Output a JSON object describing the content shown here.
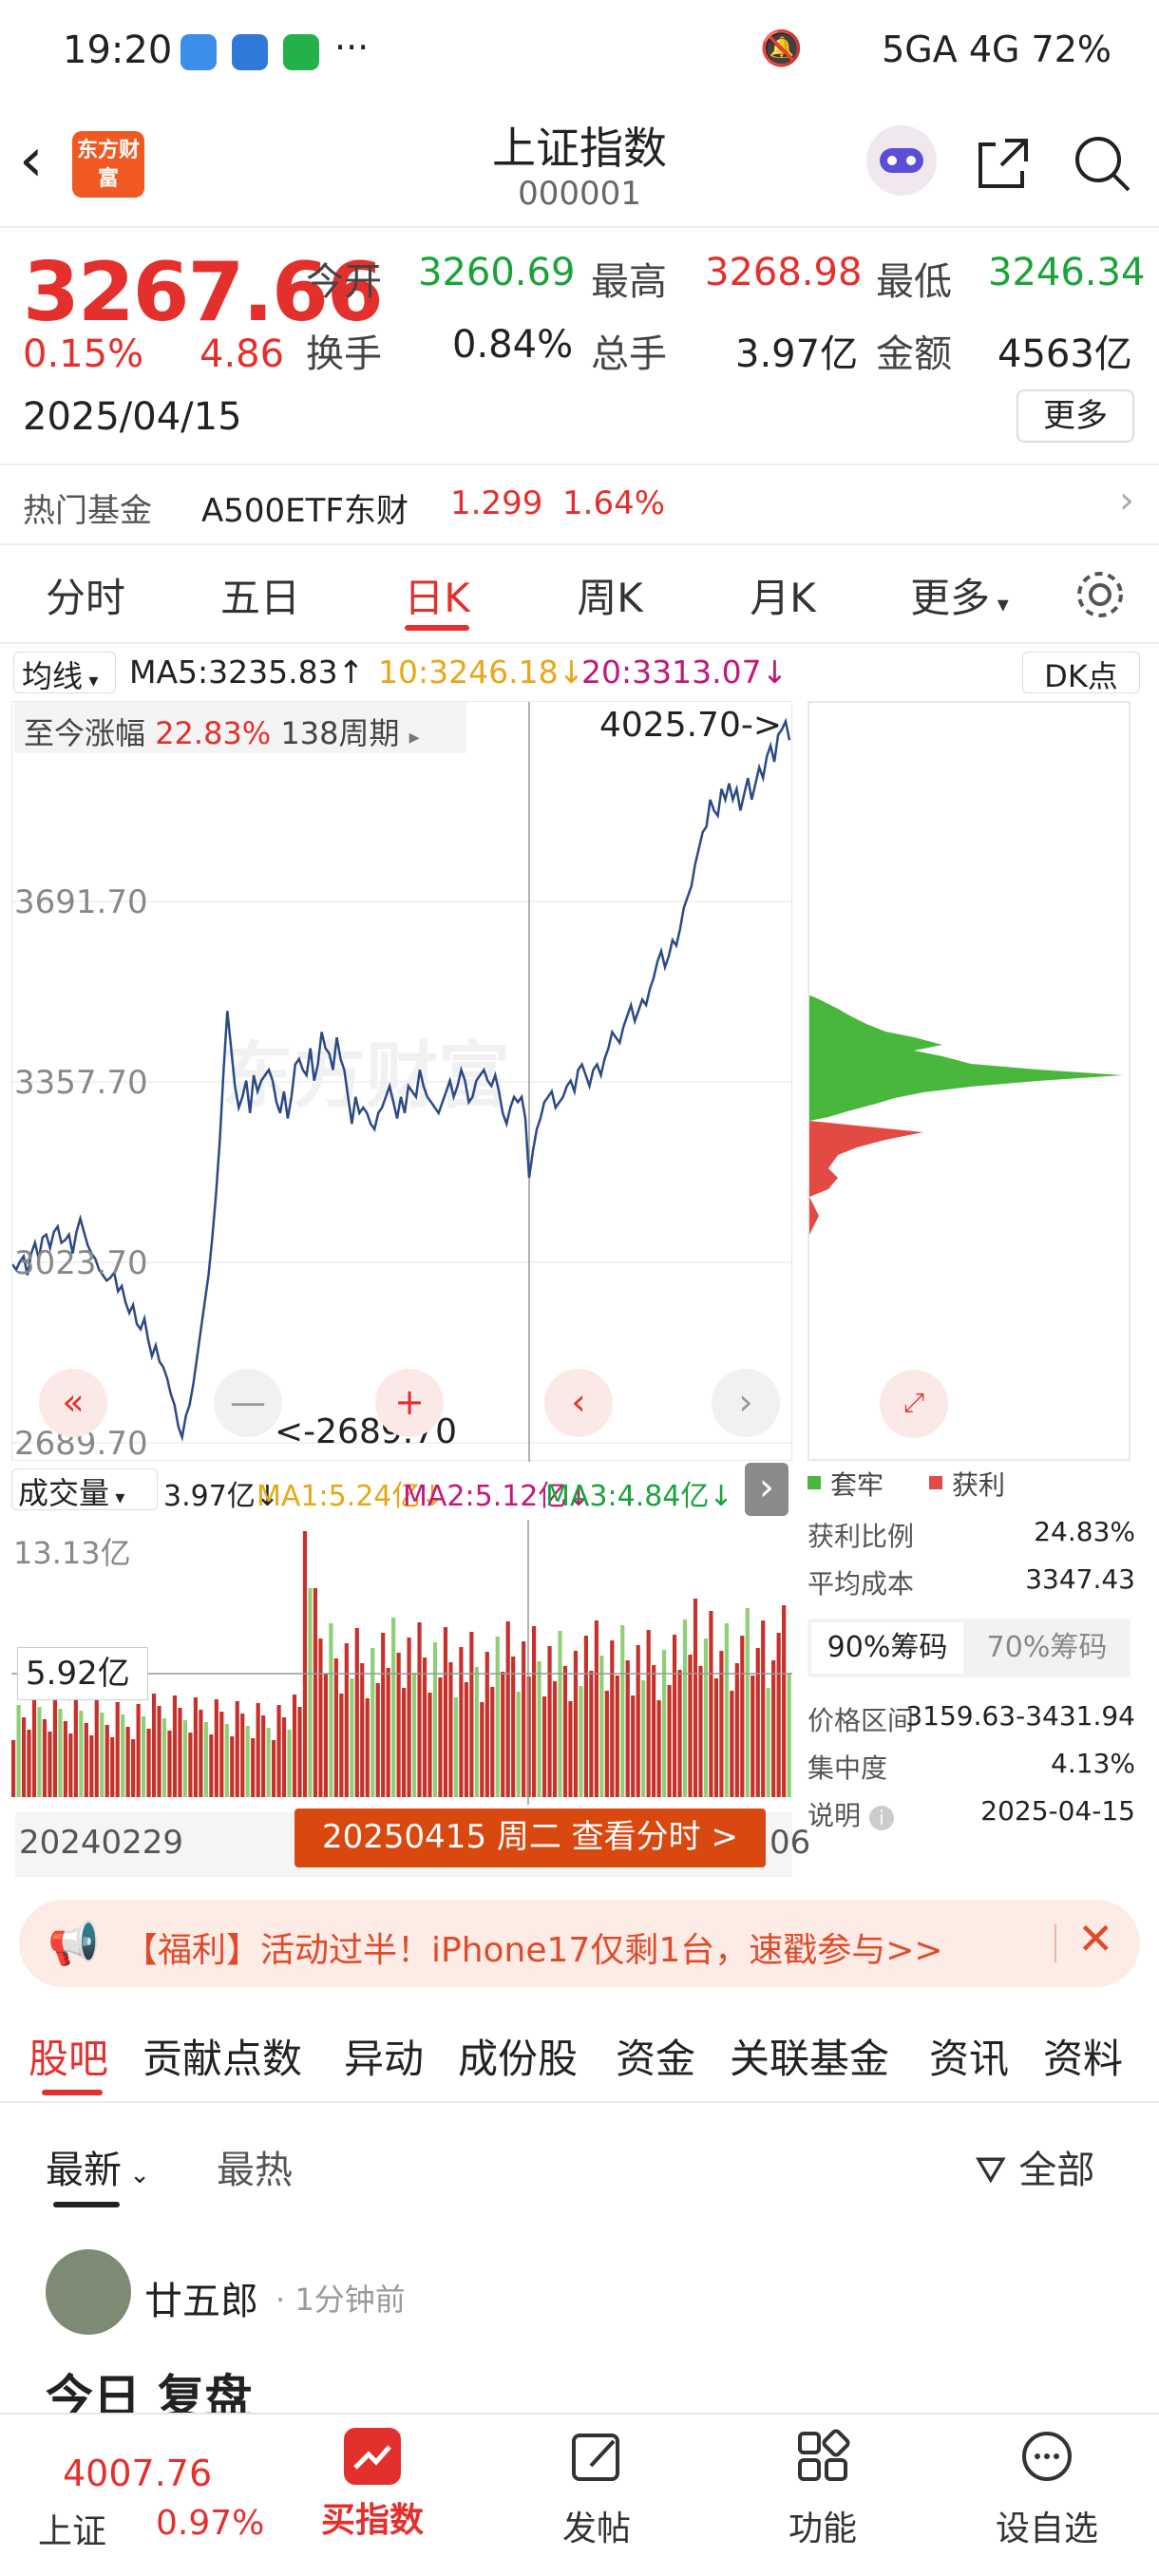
{
  "status_bar": {
    "time": "19:20",
    "right_text": "5GA 4G 72%"
  },
  "header": {
    "title": "上证指数",
    "code": "000001",
    "logo_text": "东方财富"
  },
  "quote": {
    "price": "3267.66",
    "change_pct": "0.15%",
    "change": "4.86",
    "date": "2025/04/15",
    "open_label": "今开",
    "open": "3260.69",
    "high_label": "最高",
    "high": "3268.98",
    "low_label": "最低",
    "low": "3246.34",
    "turnover_label": "换手",
    "turnover": "0.84%",
    "volume_label": "总手",
    "volume": "3.97亿",
    "amount_label": "金额",
    "amount": "4563亿",
    "more_button": "更多"
  },
  "hot_fund": {
    "label": "热门基金",
    "name": "A500ETF东财",
    "price": "1.299",
    "pct": "1.64%"
  },
  "period_tabs": [
    "分时",
    "五日",
    "日K",
    "周K",
    "月K",
    "更多"
  ],
  "active_tab": "日K",
  "ma_legend": {
    "type": "均线",
    "ma5": "MA5:3235.83",
    "ma10": "10:3246.18",
    "ma20": "20:3313.07",
    "dk": "DK点"
  },
  "range_info": {
    "label": "至今涨幅",
    "pct": "22.83%",
    "periods": "138周期"
  },
  "chart_data": {
    "type": "line",
    "y_ticks": [
      "3691.70",
      "3357.70",
      "3023.70",
      "2689.70"
    ],
    "ylim": [
      2689.7,
      4025.7
    ],
    "max_label": "4025.70->",
    "min_label": "<-2689.70",
    "watermark": "东方财富",
    "y": [
      3020,
      3010,
      3025,
      3035,
      3000,
      3040,
      3060,
      3030,
      3070,
      3075,
      3050,
      3080,
      3090,
      3060,
      3065,
      3075,
      3040,
      3080,
      3105,
      3080,
      3055,
      3040,
      3030,
      3010,
      3000,
      2990,
      2995,
      3005,
      2970,
      2980,
      2950,
      2930,
      2945,
      2910,
      2900,
      2920,
      2880,
      2850,
      2870,
      2840,
      2830,
      2810,
      2780,
      2760,
      2720,
      2700,
      2740,
      2760,
      2800,
      2850,
      2900,
      2950,
      3000,
      3070,
      3150,
      3250,
      3380,
      3489,
      3420,
      3350,
      3310,
      3330,
      3360,
      3300,
      3370,
      3340,
      3360,
      3370,
      3380,
      3360,
      3320,
      3300,
      3340,
      3290,
      3330,
      3390,
      3400,
      3380,
      3370,
      3420,
      3360,
      3390,
      3450,
      3420,
      3410,
      3380,
      3440,
      3400,
      3380,
      3330,
      3280,
      3330,
      3300,
      3310,
      3300,
      3280,
      3270,
      3300,
      3310,
      3330,
      3350,
      3320,
      3290,
      3330,
      3300,
      3350,
      3340,
      3330,
      3380,
      3350,
      3330,
      3320,
      3310,
      3300,
      3320,
      3340,
      3360,
      3330,
      3350,
      3380,
      3360,
      3320,
      3330,
      3360,
      3370,
      3380,
      3360,
      3350,
      3370,
      3340,
      3300,
      3280,
      3310,
      3330,
      3320,
      3330,
      3290,
      3180,
      3230,
      3270,
      3290,
      3320,
      3330,
      3340,
      3310,
      3320,
      3330,
      3350,
      3360,
      3340,
      3380,
      3390,
      3370,
      3350,
      3380,
      3390,
      3370,
      3400,
      3420,
      3450,
      3440,
      3430,
      3460,
      3480,
      3500,
      3470,
      3490,
      3510,
      3500,
      3530,
      3550,
      3580,
      3600,
      3570,
      3590,
      3620,
      3610,
      3640,
      3680,
      3700,
      3720,
      3760,
      3790,
      3820,
      3830,
      3880,
      3860,
      3850,
      3900,
      3880,
      3910,
      3880,
      3900,
      3860,
      3890,
      3920,
      3880,
      3910,
      3940,
      3920,
      3960,
      3980,
      3950,
      4000,
      4010,
      4025,
      3990
    ]
  },
  "nav_buttons": [
    "«",
    "—",
    "+",
    "‹",
    "›"
  ],
  "volume": {
    "label": "成交量",
    "value": "3.97亿",
    "ma1": "MA1:5.24亿",
    "ma2": "MA2:5.12亿",
    "ma3": "MA3:4.84亿",
    "top_tick": "13.13亿",
    "cursor_tick": "5.92亿",
    "start_date": "20240229",
    "cursor_date": "20250415 周二 查看分时 >",
    "end_tail": "06"
  },
  "chip": {
    "legend_trapped": "套牢",
    "legend_profit": "获利",
    "rows": [
      {
        "label": "获利比例",
        "value": "24.83%"
      },
      {
        "label": "平均成本",
        "value": "3347.43"
      }
    ],
    "tab_90": "90%筹码",
    "tab_70": "70%筹码",
    "rows2": [
      {
        "label": "价格区间",
        "value": "3159.63-3431.94"
      },
      {
        "label": "集中度",
        "value": "4.13%"
      },
      {
        "label": "说明",
        "value": "2025-04-15"
      }
    ],
    "colors": {
      "green": "#49b73b",
      "red": "#e34a44"
    }
  },
  "banner": {
    "text": "【福利】活动过半！iPhone17仅剩1台，速戳参与>>"
  },
  "section_tabs": [
    "股吧",
    "贡献点数",
    "异动",
    "成份股",
    "资金",
    "关联基金",
    "资讯",
    "资料"
  ],
  "filter": {
    "latest": "最新",
    "hot": "最热",
    "all": "全部"
  },
  "post": {
    "author": "廿五郎",
    "time": "· 1分钟前",
    "title": "今日 复盘"
  },
  "bottom_bar": {
    "index_price": "4007.76",
    "index_name": "上证",
    "index_pct": "0.97%",
    "items": [
      "买指数",
      "发帖",
      "功能",
      "设自选"
    ]
  }
}
